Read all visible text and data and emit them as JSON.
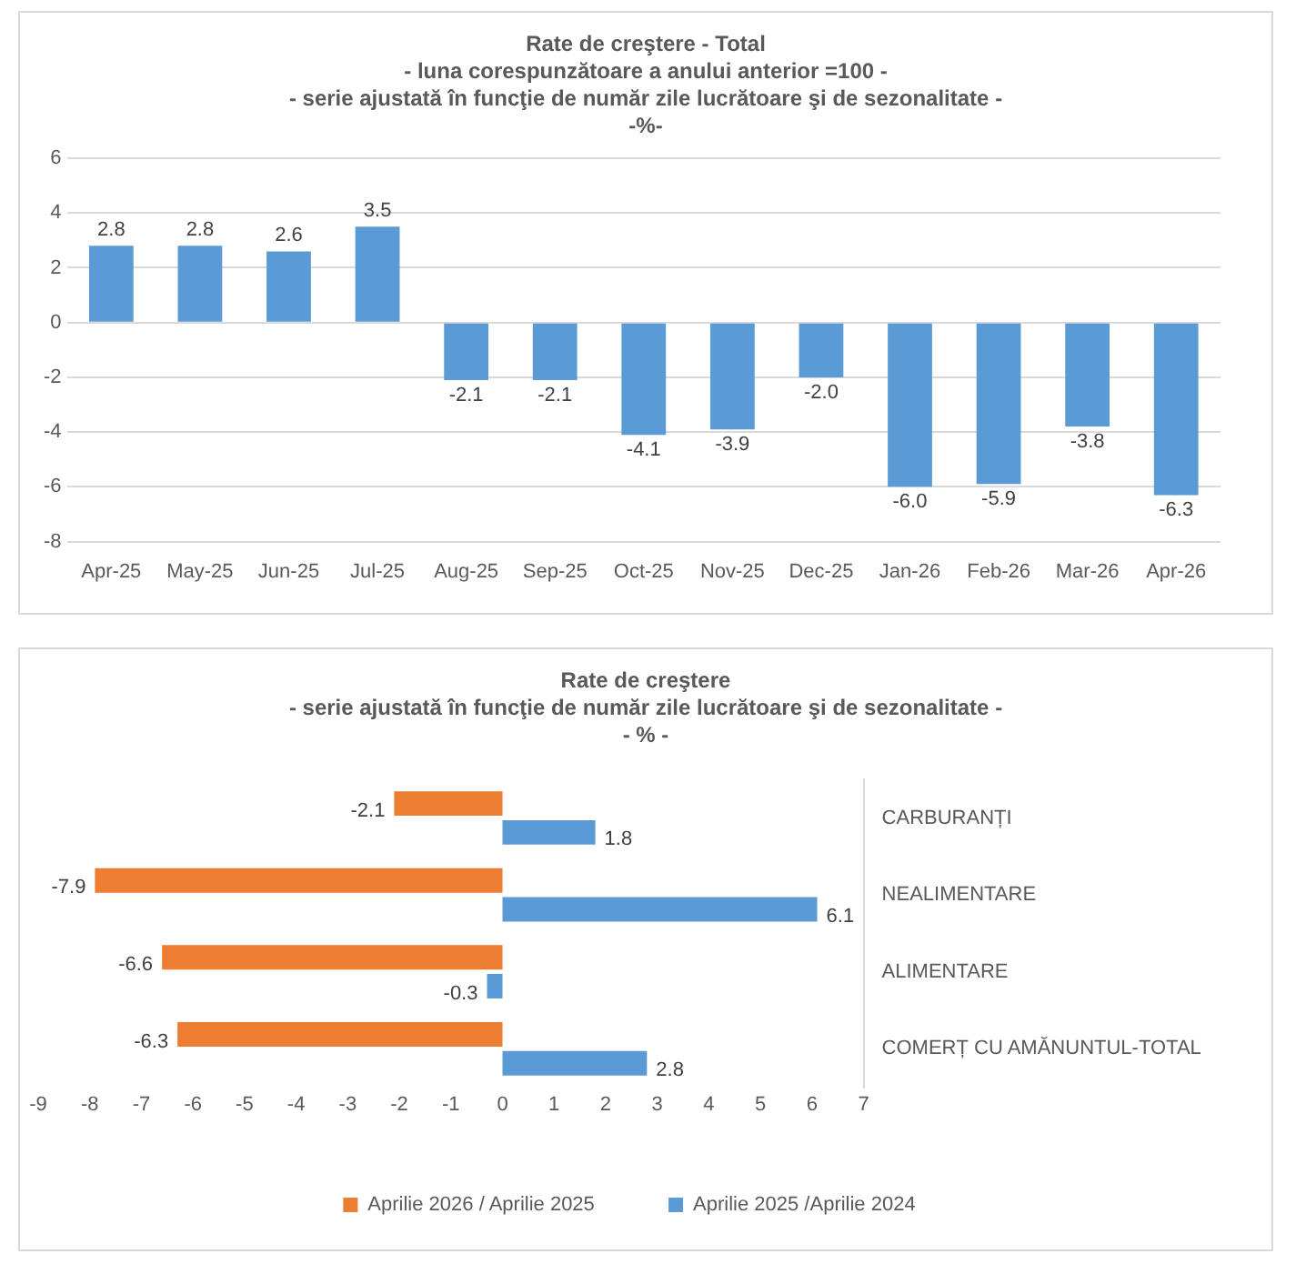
{
  "chart_data": [
    {
      "type": "bar",
      "title": "Rate de creştere - Total",
      "subtitle": "- luna corespunzătoare a anului anterior =100 -\n- serie ajustată în funcţie de număr zile lucrătoare şi de sezonalitate -\n-%-",
      "categories": [
        "Apr-25",
        "May-25",
        "Jun-25",
        "Jul-25",
        "Aug-25",
        "Sep-25",
        "Oct-25",
        "Nov-25",
        "Dec-25",
        "Jan-26",
        "Feb-26",
        "Mar-26",
        "Apr-26"
      ],
      "values": [
        2.8,
        2.8,
        2.6,
        3.5,
        -2.1,
        -2.1,
        -4.1,
        -3.9,
        -2.0,
        -6.0,
        -5.9,
        -3.8,
        -6.3
      ],
      "value_labels": [
        "2.8",
        "2.8",
        "2.6",
        "3.5",
        "-2.1",
        "-2.1",
        "-4.1",
        "-3.9",
        "-2.0",
        "-6.0",
        "-5.9",
        "-3.8",
        "-6.3"
      ],
      "color": "#5b9bd5",
      "ylim": [
        -8,
        6
      ],
      "yticks": [
        -8,
        -6,
        -4,
        -2,
        0,
        2,
        4,
        6
      ],
      "grid": "y",
      "legend": false
    },
    {
      "type": "bar",
      "orientation": "horizontal",
      "title": "Rate de creştere",
      "subtitle": "- serie ajustată în funcţie de număr zile lucrătoare şi de sezonalitate -\n- % -",
      "categories": [
        "CARBURANȚI",
        "NEALIMENTARE",
        "ALIMENTARE",
        "COMERȚ CU AMĂNUNTUL-TOTAL"
      ],
      "series": [
        {
          "name": "Aprilie 2026 / Aprilie 2025",
          "color": "#ed7d31",
          "values": [
            -2.1,
            -7.9,
            -6.6,
            -6.3
          ],
          "value_labels": [
            "-2.1",
            "-7.9",
            "-6.6",
            "-6.3"
          ]
        },
        {
          "name": "Aprilie 2025 /Aprilie 2024",
          "color": "#5b9bd5",
          "values": [
            1.8,
            6.1,
            -0.3,
            2.8
          ],
          "value_labels": [
            "1.8",
            "6.1",
            "-0.3",
            "2.8"
          ]
        }
      ],
      "xlim": [
        -9,
        7
      ],
      "xticks": [
        -9,
        -8,
        -7,
        -6,
        -5,
        -4,
        -3,
        -2,
        -1,
        0,
        1,
        2,
        3,
        4,
        5,
        6,
        7
      ],
      "grid": false,
      "legend": "bottom"
    }
  ]
}
